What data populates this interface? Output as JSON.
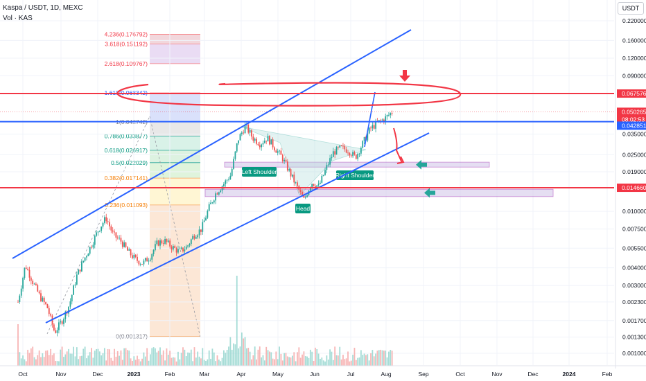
{
  "header": {
    "symbol": "Kaspa / USDT, 1D, MEXC",
    "volume_label": "Vol · KAS"
  },
  "unit_button": "USDT",
  "chart_data": {
    "type": "candlestick",
    "title": "Kaspa / USDT, 1D, MEXC",
    "scale": "log",
    "ylim": [
      0.00085,
      0.23
    ],
    "x_tick_labels": [
      "Oct",
      "Nov",
      "Dec",
      "2023",
      "Feb",
      "Mar",
      "Apr",
      "May",
      "Jun",
      "Jul",
      "Aug",
      "Sep",
      "Oct",
      "Nov",
      "Dec",
      "2024",
      "Feb"
    ],
    "y_tick_labels": [
      0.22,
      0.16,
      0.12,
      0.09,
      0.035,
      0.025,
      0.019,
      0.01,
      0.0075,
      0.0055,
      0.004,
      0.003,
      0.0023,
      0.0017,
      0.0013,
      0.001
    ],
    "y_tick_label_text": [
      "0.220000",
      "0.160000",
      "0.120000",
      "0.090000",
      "0.035000",
      "0.025000",
      "0.019000",
      "0.010000",
      "0.007500",
      "0.005500",
      "0.004000",
      "0.003000",
      "0.002300",
      "0.001700",
      "0.001300",
      "0.001000"
    ],
    "price_path": [
      [
        "Oct",
        0.0023
      ],
      [
        "Oct",
        0.0042
      ],
      [
        "Oct",
        0.0032
      ],
      [
        "Oct",
        0.0025
      ],
      [
        "Oct",
        0.0021
      ],
      [
        "Nov",
        0.0014
      ],
      [
        "Nov",
        0.0017
      ],
      [
        "Nov",
        0.0022
      ],
      [
        "Nov",
        0.0035
      ],
      [
        "Nov",
        0.0046
      ],
      [
        "Dec",
        0.0058
      ],
      [
        "Dec",
        0.0075
      ],
      [
        "Dec",
        0.009
      ],
      [
        "Dec",
        0.0068
      ],
      [
        "Dec",
        0.0062
      ],
      [
        "2023",
        0.0052
      ],
      [
        "2023",
        0.0046
      ],
      [
        "2023",
        0.0043
      ],
      [
        "2023",
        0.0048
      ],
      [
        "2023",
        0.006
      ],
      [
        "Feb",
        0.0062
      ],
      [
        "Feb",
        0.0056
      ],
      [
        "Feb",
        0.0052
      ],
      [
        "Feb",
        0.0056
      ],
      [
        "Feb",
        0.0068
      ],
      [
        "Mar",
        0.0075
      ],
      [
        "Mar",
        0.0105
      ],
      [
        "Mar",
        0.0135
      ],
      [
        "Mar",
        0.0155
      ],
      [
        "Mar",
        0.018
      ],
      [
        "Apr",
        0.032
      ],
      [
        "Apr",
        0.04
      ],
      [
        "Apr",
        0.033
      ],
      [
        "Apr",
        0.03
      ],
      [
        "Apr",
        0.033
      ],
      [
        "May",
        0.028
      ],
      [
        "May",
        0.024
      ],
      [
        "May",
        0.019
      ],
      [
        "May",
        0.015
      ],
      [
        "May",
        0.012
      ],
      [
        "Jun",
        0.016
      ],
      [
        "Jun",
        0.015
      ],
      [
        "Jun",
        0.02
      ],
      [
        "Jun",
        0.026
      ],
      [
        "Jun",
        0.028
      ],
      [
        "Jul",
        0.027
      ],
      [
        "Jul",
        0.024
      ],
      [
        "Jul",
        0.03
      ],
      [
        "Jul",
        0.038
      ],
      [
        "Jul",
        0.042
      ],
      [
        "Aug",
        0.045
      ],
      [
        "Aug",
        0.05
      ]
    ],
    "fibonacci": [
      {
        "ratio": "4.236",
        "price": 0.176792,
        "label": "4.236(0.176792)",
        "color": "#f0d0d6"
      },
      {
        "ratio": "3.618",
        "price": 0.151192,
        "label": "3.618(0.151192)",
        "color": "#e6d6f2"
      },
      {
        "ratio": "2.618",
        "price": 0.109767,
        "label": "2.618(0.109767)",
        "color": "#fff"
      },
      {
        "ratio": "1.618",
        "price": 0.068342,
        "label": "1.618(0.068342)",
        "color": "#d4dcfa"
      },
      {
        "ratio": "1",
        "price": 0.042742,
        "label": "1(0.042742)",
        "color": "#e4e4e4"
      },
      {
        "ratio": "0.786",
        "price": 0.033877,
        "label": "0.786(0.033877)",
        "color": "#d2f0e4"
      },
      {
        "ratio": "0.618",
        "price": 0.026917,
        "label": "0.618(0.026917)",
        "color": "#d7f0dc"
      },
      {
        "ratio": "0.5",
        "price": 0.022029,
        "label": "0.5(0.022029)",
        "color": "#d9f2d6"
      },
      {
        "ratio": "0.382",
        "price": 0.017141,
        "label": "0.382(0.017141)",
        "color": "#fff4cc"
      },
      {
        "ratio": "0.236",
        "price": 0.011093,
        "label": "0.236(0.011093)",
        "color": "#fbe3cf"
      },
      {
        "ratio": "0",
        "price": 0.001317,
        "label": "0(0.001317)",
        "color": "#fad2d2"
      }
    ],
    "horizontal_levels": [
      {
        "price": 0.067576,
        "label": "0.067576",
        "color": "#f23645"
      },
      {
        "price": 0.042851,
        "label": "0.042851",
        "color": "#2962ff"
      },
      {
        "price": 0.01466,
        "label": "0.014660",
        "color": "#f23645"
      }
    ],
    "current_price": {
      "price": 0.050265,
      "label": "0.050265",
      "countdown": "08:02:53",
      "color": "#f23645"
    },
    "annotations": [
      "Left Shoulder",
      "Head",
      "Right Shoulder"
    ],
    "support_zones": [
      {
        "name": "upper-zone",
        "low": 0.0205,
        "high": 0.022
      },
      {
        "name": "lower-zone",
        "low": 0.0128,
        "high": 0.0143
      }
    ]
  },
  "colors": {
    "up": "#26a69a",
    "down": "#ef5350",
    "channel": "#2962ff",
    "alert": "#f23645",
    "grid": "#f0f3fa",
    "text": "#131722"
  }
}
